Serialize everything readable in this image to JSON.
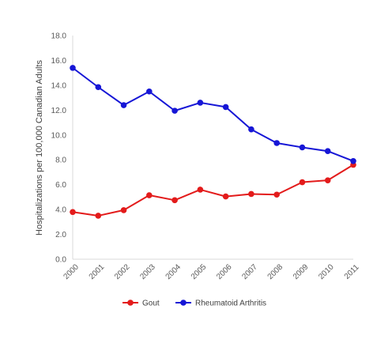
{
  "chart_data": {
    "type": "line",
    "categories": [
      "2000",
      "2001",
      "2002",
      "2003",
      "2004",
      "2005",
      "2006",
      "2007",
      "2008",
      "2009",
      "2010",
      "2011"
    ],
    "series": [
      {
        "name": "Gout",
        "color": "#e31b1b",
        "values": [
          3.8,
          3.5,
          3.95,
          5.15,
          4.75,
          5.6,
          5.05,
          5.25,
          5.2,
          6.2,
          6.35,
          7.6
        ]
      },
      {
        "name": "Rheumatoid Arthritis",
        "color": "#1616d6",
        "values": [
          15.4,
          13.85,
          12.4,
          13.5,
          11.95,
          12.6,
          12.25,
          10.45,
          9.35,
          9.0,
          8.7,
          7.9
        ]
      }
    ],
    "title": "",
    "xlabel": "",
    "ylabel": "Hospitalizations per 100,000 Canadian Adults",
    "ylim": [
      0,
      18
    ],
    "yticks": [
      "0.0",
      "2.0",
      "4.0",
      "6.0",
      "8.0",
      "10.0",
      "12.0",
      "14.0",
      "16.0",
      "18.0"
    ],
    "grid": false,
    "legend": "bottom"
  }
}
